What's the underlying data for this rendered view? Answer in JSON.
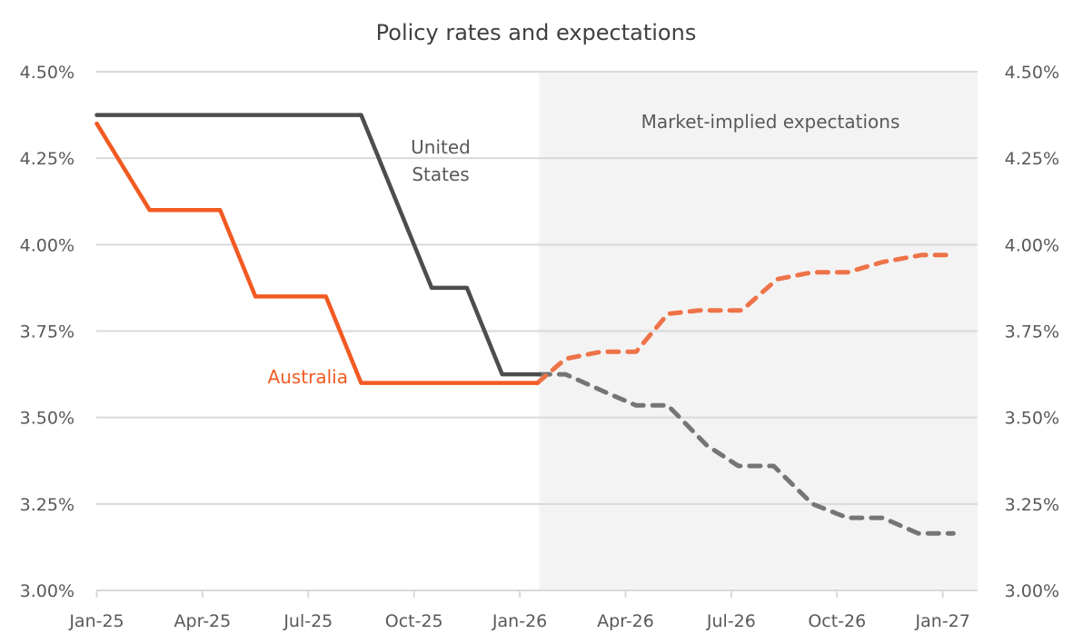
{
  "chart_data": {
    "type": "line",
    "title": "Policy rates and expectations",
    "xlabel": "",
    "ylabel": "",
    "x_unit": "months since Jan-25",
    "x_ticks": [
      {
        "label": "Jan-25",
        "month": 0
      },
      {
        "label": "Apr-25",
        "month": 3
      },
      {
        "label": "Jul-25",
        "month": 6
      },
      {
        "label": "Oct-25",
        "month": 9
      },
      {
        "label": "Jan-26",
        "month": 12
      },
      {
        "label": "Apr-26",
        "month": 15
      },
      {
        "label": "Jul-26",
        "month": 18
      },
      {
        "label": "Oct-26",
        "month": 21
      },
      {
        "label": "Jan-27",
        "month": 24
      }
    ],
    "xlim": [
      0,
      25
    ],
    "ylim": [
      3.0,
      4.5
    ],
    "y_ticks": [
      3.0,
      3.25,
      3.5,
      3.75,
      4.0,
      4.25,
      4.5
    ],
    "y_tick_labels": [
      "3.00%",
      "3.25%",
      "3.50%",
      "3.75%",
      "4.00%",
      "4.25%",
      "4.50%"
    ],
    "secondary_y_axis": true,
    "grid": "horizontal",
    "legend": "none (inline labels)",
    "shaded_region": {
      "label": "Market-implied expectations",
      "x_start": 12.55,
      "x_end": 25,
      "color": "#f3f3f3"
    },
    "series": [
      {
        "name": "United States",
        "label": "United States",
        "label_lines": [
          "United",
          "States"
        ],
        "color": "#4d4d4d",
        "style": "solid",
        "points": [
          [
            0,
            4.375
          ],
          [
            7.5,
            4.375
          ],
          [
            9.5,
            3.875
          ],
          [
            10.5,
            3.875
          ],
          [
            11.5,
            3.625
          ],
          [
            12.55,
            3.625
          ]
        ]
      },
      {
        "name": "Australia",
        "label": "Australia",
        "label_lines": [
          "Australia"
        ],
        "color": "#f15a22",
        "style": "solid",
        "points": [
          [
            0,
            4.35
          ],
          [
            1.5,
            4.1
          ],
          [
            3.5,
            4.1
          ],
          [
            4.5,
            3.85
          ],
          [
            6.5,
            3.85
          ],
          [
            7.5,
            3.6
          ],
          [
            12.5,
            3.6
          ]
        ]
      },
      {
        "name": "United States expectations",
        "color": "#757575",
        "style": "dashed",
        "points": [
          [
            12.55,
            3.625
          ],
          [
            13.3,
            3.625
          ],
          [
            14.5,
            3.57
          ],
          [
            15.3,
            3.535
          ],
          [
            16.2,
            3.535
          ],
          [
            17.3,
            3.42
          ],
          [
            18.2,
            3.36
          ],
          [
            19.2,
            3.36
          ],
          [
            20.3,
            3.25
          ],
          [
            21.3,
            3.21
          ],
          [
            22.3,
            3.21
          ],
          [
            23.3,
            3.165
          ],
          [
            24.3,
            3.165
          ]
        ]
      },
      {
        "name": "Australia expectations",
        "color": "#ee7348",
        "style": "dashed",
        "points": [
          [
            12.5,
            3.6
          ],
          [
            13.3,
            3.67
          ],
          [
            14.3,
            3.69
          ],
          [
            15.3,
            3.69
          ],
          [
            16.2,
            3.8
          ],
          [
            17.1,
            3.81
          ],
          [
            18.3,
            3.81
          ],
          [
            19.3,
            3.9
          ],
          [
            20.3,
            3.92
          ],
          [
            21.3,
            3.92
          ],
          [
            22.3,
            3.95
          ],
          [
            23.4,
            3.97
          ],
          [
            24.3,
            3.97
          ]
        ]
      }
    ]
  }
}
